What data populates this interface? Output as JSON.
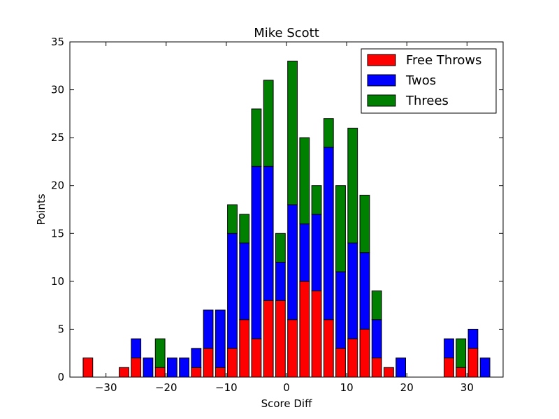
{
  "chart_data": {
    "type": "bar",
    "stacked": true,
    "title": "Mike Scott",
    "xlabel": "Score Diff",
    "ylabel": "Points",
    "xlim": [
      -36,
      36
    ],
    "ylim": [
      0,
      35
    ],
    "xticks": [
      -30,
      -20,
      -10,
      0,
      10,
      20,
      30
    ],
    "xtick_labels": [
      "−30",
      "−20",
      "−10",
      "0",
      "10",
      "20",
      "30"
    ],
    "yticks": [
      0,
      5,
      10,
      15,
      20,
      25,
      30,
      35
    ],
    "ytick_labels": [
      "0",
      "5",
      "10",
      "15",
      "20",
      "25",
      "30",
      "35"
    ],
    "grid": false,
    "legend_position": "top-right",
    "categories": [
      -35,
      -33,
      -31,
      -29,
      -27,
      -25,
      -23,
      -21,
      -19,
      -17,
      -15,
      -13,
      -11,
      -9,
      -7,
      -5,
      -3,
      -1,
      1,
      3,
      5,
      7,
      9,
      11,
      13,
      15,
      17,
      19,
      21,
      23,
      25,
      27,
      29,
      31,
      33,
      35
    ],
    "series": [
      {
        "name": "Free Throws",
        "color": "#ff0000",
        "values": [
          0,
          2,
          0,
          0,
          1,
          2,
          0,
          1,
          0,
          0,
          1,
          3,
          1,
          3,
          6,
          4,
          8,
          8,
          6,
          10,
          9,
          6,
          3,
          4,
          5,
          2,
          1,
          0,
          0,
          0,
          0,
          2,
          1,
          3,
          0,
          0
        ]
      },
      {
        "name": "Twos",
        "color": "#0000ff",
        "values": [
          0,
          0,
          0,
          0,
          0,
          2,
          2,
          0,
          2,
          2,
          2,
          4,
          6,
          12,
          8,
          18,
          14,
          4,
          12,
          6,
          8,
          18,
          8,
          10,
          8,
          4,
          0,
          2,
          0,
          0,
          0,
          2,
          0,
          2,
          2,
          0
        ]
      },
      {
        "name": "Threes",
        "color": "#008000",
        "values": [
          0,
          0,
          0,
          0,
          0,
          0,
          0,
          3,
          0,
          0,
          0,
          0,
          0,
          3,
          3,
          6,
          9,
          3,
          15,
          9,
          3,
          3,
          9,
          12,
          6,
          3,
          0,
          0,
          0,
          0,
          0,
          0,
          3,
          0,
          0,
          0
        ]
      }
    ]
  }
}
